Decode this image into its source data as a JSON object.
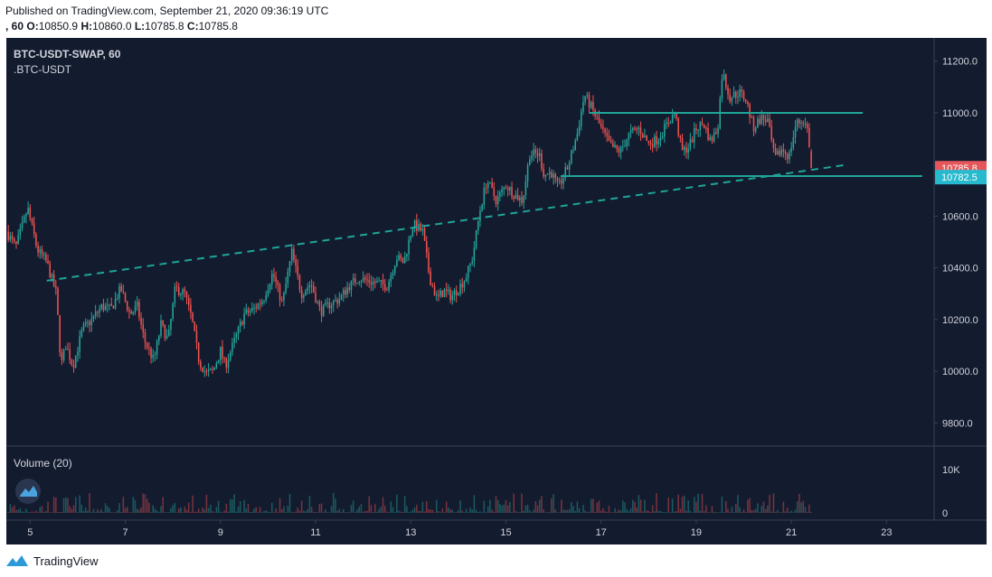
{
  "header": {
    "published": "Published on TradingView.com, September 21, 2020 09:36:19 UTC",
    "interval_prefix": ", 60",
    "o_label": "O:",
    "o_value": "10850.9",
    "h_label": "H:",
    "h_value": "10860.0",
    "l_label": "L:",
    "l_value": "10785.8",
    "c_label": "C:",
    "c_value": "10785.8"
  },
  "chart_data": {
    "type": "candlestick",
    "symbol": "BTC-USDT-SWAP, 60",
    "source": ".BTC-USDT",
    "x": {
      "unit": "day (September 2020)",
      "range": [
        4.5,
        24.0
      ],
      "ticks": [
        5,
        7,
        9,
        11,
        13,
        15,
        17,
        19,
        21,
        23
      ],
      "tick_labels": [
        "5",
        "7",
        "9",
        "11",
        "13",
        "15",
        "17",
        "19",
        "21",
        "23"
      ]
    },
    "y": {
      "range": [
        9710,
        11290
      ],
      "ticks": [
        9800,
        10000,
        10200,
        10400,
        10600,
        10800,
        11000,
        11200
      ],
      "tick_labels": [
        "9800.0",
        "10000.0",
        "10200.0",
        "10400.0",
        "10600.0",
        "10800.0",
        "11000.0",
        "11200.0"
      ]
    },
    "price_path": [
      [
        4.5,
        10540
      ],
      [
        4.7,
        10480
      ],
      [
        4.95,
        10630
      ],
      [
        5.15,
        10470
      ],
      [
        5.35,
        10420
      ],
      [
        5.55,
        10300
      ],
      [
        5.65,
        10020
      ],
      [
        5.75,
        10100
      ],
      [
        5.9,
        10020
      ],
      [
        6.1,
        10160
      ],
      [
        6.3,
        10200
      ],
      [
        6.5,
        10250
      ],
      [
        6.7,
        10240
      ],
      [
        6.9,
        10320
      ],
      [
        7.1,
        10220
      ],
      [
        7.25,
        10250
      ],
      [
        7.4,
        10120
      ],
      [
        7.6,
        10040
      ],
      [
        7.75,
        10180
      ],
      [
        7.9,
        10120
      ],
      [
        8.05,
        10320
      ],
      [
        8.25,
        10300
      ],
      [
        8.4,
        10200
      ],
      [
        8.55,
        10040
      ],
      [
        8.7,
        9990
      ],
      [
        8.85,
        10000
      ],
      [
        9.0,
        10080
      ],
      [
        9.1,
        10020
      ],
      [
        9.3,
        10120
      ],
      [
        9.5,
        10220
      ],
      [
        9.7,
        10240
      ],
      [
        9.9,
        10280
      ],
      [
        10.1,
        10380
      ],
      [
        10.3,
        10260
      ],
      [
        10.5,
        10460
      ],
      [
        10.7,
        10300
      ],
      [
        10.9,
        10340
      ],
      [
        11.1,
        10230
      ],
      [
        11.3,
        10260
      ],
      [
        11.5,
        10280
      ],
      [
        11.7,
        10330
      ],
      [
        11.9,
        10360
      ],
      [
        12.1,
        10350
      ],
      [
        12.3,
        10340
      ],
      [
        12.5,
        10330
      ],
      [
        12.7,
        10440
      ],
      [
        12.85,
        10420
      ],
      [
        13.05,
        10570
      ],
      [
        13.25,
        10540
      ],
      [
        13.4,
        10360
      ],
      [
        13.55,
        10280
      ],
      [
        13.7,
        10310
      ],
      [
        13.85,
        10290
      ],
      [
        14.0,
        10320
      ],
      [
        14.15,
        10360
      ],
      [
        14.3,
        10440
      ],
      [
        14.45,
        10620
      ],
      [
        14.6,
        10740
      ],
      [
        14.8,
        10660
      ],
      [
        15.0,
        10720
      ],
      [
        15.2,
        10680
      ],
      [
        15.35,
        10660
      ],
      [
        15.5,
        10840
      ],
      [
        15.7,
        10840
      ],
      [
        15.8,
        10760
      ],
      [
        15.95,
        10770
      ],
      [
        16.1,
        10710
      ],
      [
        16.3,
        10790
      ],
      [
        16.5,
        10920
      ],
      [
        16.65,
        11070
      ],
      [
        16.8,
        11020
      ],
      [
        17.0,
        10940
      ],
      [
        17.2,
        10870
      ],
      [
        17.4,
        10850
      ],
      [
        17.6,
        10920
      ],
      [
        17.8,
        10940
      ],
      [
        18.0,
        10880
      ],
      [
        18.2,
        10900
      ],
      [
        18.4,
        10960
      ],
      [
        18.55,
        11000
      ],
      [
        18.7,
        10850
      ],
      [
        18.85,
        10870
      ],
      [
        19.0,
        10940
      ],
      [
        19.15,
        10960
      ],
      [
        19.3,
        10890
      ],
      [
        19.45,
        10940
      ],
      [
        19.55,
        11160
      ],
      [
        19.7,
        11060
      ],
      [
        19.9,
        11080
      ],
      [
        20.05,
        11050
      ],
      [
        20.2,
        10940
      ],
      [
        20.35,
        10980
      ],
      [
        20.5,
        10970
      ],
      [
        20.65,
        10820
      ],
      [
        20.8,
        10860
      ],
      [
        20.95,
        10830
      ],
      [
        21.1,
        10960
      ],
      [
        21.25,
        10970
      ],
      [
        21.35,
        10930
      ],
      [
        21.42,
        10785.8
      ]
    ],
    "last_price": "10785.8",
    "price_label_2": "10782.5",
    "resistance_line": {
      "price": 11000,
      "x_from": 16.75,
      "x_to": 22.5
    },
    "support_line": {
      "price": 10755,
      "x_from": 16.15,
      "x_to": 23.75
    },
    "trend_line": {
      "style": "dashed",
      "from": [
        5.35,
        10350
      ],
      "to": [
        22.2,
        10800
      ]
    },
    "volume": {
      "label": "Volume (20)",
      "ticks": [
        0,
        10000
      ],
      "tick_labels": [
        "0",
        "10K"
      ]
    },
    "colors": {
      "up": "#26a69a",
      "down": "#ef5350",
      "background": "#131b2f",
      "lines": "#1fa597",
      "last_price_bg": "#e5575a",
      "label2_bg": "#27b9cd"
    }
  },
  "footer": {
    "brand": "TradingView"
  }
}
